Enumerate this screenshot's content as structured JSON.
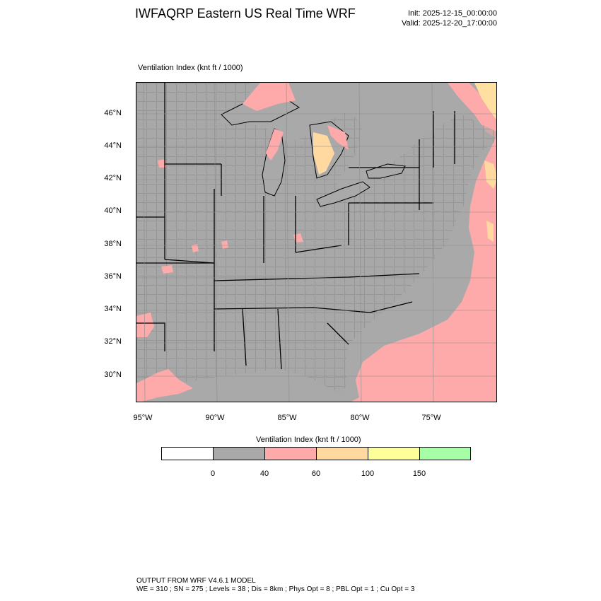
{
  "header": {
    "title": "IWFAQRP Eastern US Real Time WRF",
    "init": "Init: 2025-12-15_00:00:00",
    "valid": "Valid: 2025-12-20_17:00:00"
  },
  "plot": {
    "subtitle": "Ventilation Index   (knt ft / 1000)",
    "lat_ticks": [
      "46°N",
      "44°N",
      "42°N",
      "40°N",
      "38°N",
      "36°N",
      "34°N",
      "32°N",
      "30°N"
    ],
    "lon_ticks": [
      "95°W",
      "90°W",
      "85°W",
      "80°W",
      "75°W"
    ]
  },
  "colorbar": {
    "title": "Ventilation Index  (knt ft / 1000)",
    "labels": [
      "0",
      "40",
      "60",
      "100",
      "150"
    ],
    "colors": [
      "#ffffff",
      "#a9a9a9",
      "#ffaaaa",
      "#ffd9a0",
      "#ffff99",
      "#a6ffa6"
    ]
  },
  "map_colors": {
    "land": "#a9a9a9",
    "water": "#a9a9a9",
    "pink": "#ffaaaa",
    "orange": "#ffd9a0",
    "yellow": "#ffff99"
  },
  "footer": {
    "line1": "OUTPUT FROM WRF V4.6.1 MODEL",
    "line2": "WE = 310 ; SN = 275 ; Levels = 38 ; Dis = 8km ; Phys Opt = 8 ; PBL Opt = 1 ; Cu Opt = 3"
  }
}
